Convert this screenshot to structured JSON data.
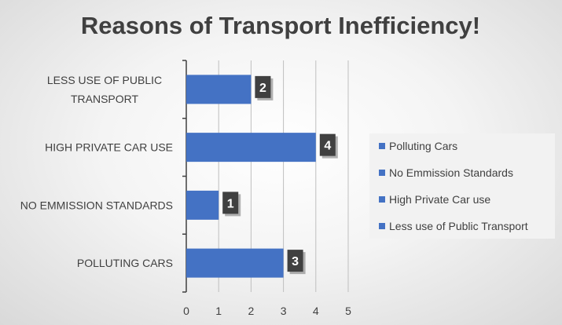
{
  "chart_data": {
    "type": "bar",
    "orientation": "horizontal",
    "title": "Reasons of Transport Inefficiency!",
    "categories": [
      "LESS USE OF PUBLIC TRANSPORT",
      "HIGH PRIVATE CAR USE",
      "NO EMMISSION STANDARDS",
      "POLLUTING CARS"
    ],
    "values": [
      2,
      4,
      1,
      3
    ],
    "xlim": [
      0,
      5
    ],
    "xticks": [
      "0",
      "1",
      "2",
      "3",
      "4",
      "5"
    ],
    "grid": "vertical",
    "legend": {
      "placement": "right",
      "entries": [
        "Polluting Cars",
        "No Emmission Standards",
        "High Private Car use",
        "Less use of Public Transport"
      ]
    },
    "bar_color": "#4472c4",
    "data_label_bg": "#404040"
  }
}
